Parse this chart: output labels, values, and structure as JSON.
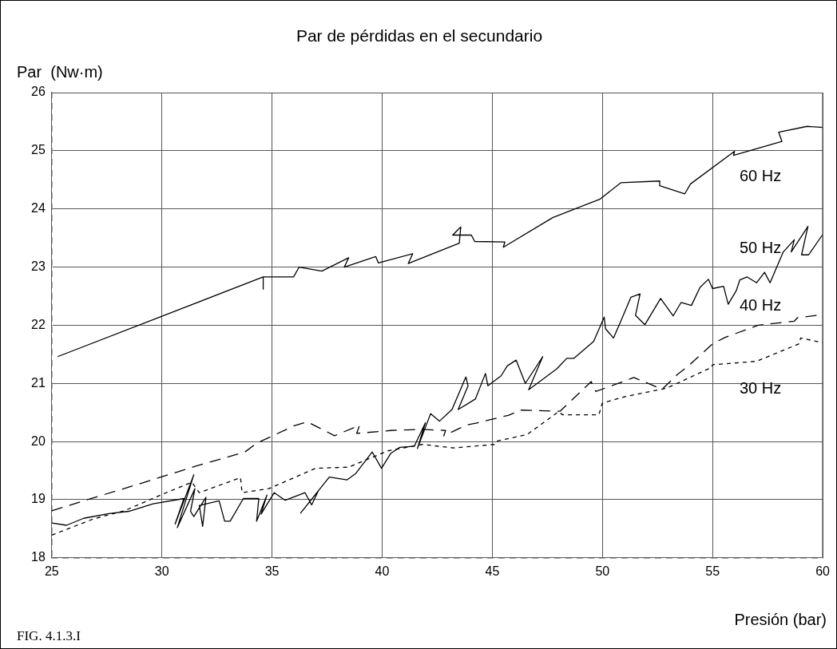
{
  "chart_data": {
    "type": "line",
    "title": "Par de pérdidas en el secundario",
    "xlabel": "Presión (bar)",
    "ylabel": "Par  (Nw·m)",
    "xlim": [
      25,
      60
    ],
    "xticks": [
      25,
      30,
      35,
      40,
      45,
      50,
      55,
      60
    ],
    "ylim": [
      18,
      26
    ],
    "yticks": [
      18,
      19,
      20,
      21,
      22,
      23,
      24,
      25,
      26
    ],
    "grid": true,
    "legend": false,
    "annotations": [
      "FIG. 4.1.3.I"
    ],
    "series": [
      {
        "name": "60 Hz",
        "color": "#000000",
        "line_style": "solid",
        "x": [
          25.27,
          34.6,
          34.6,
          34.6,
          35.98,
          36.23,
          37.26,
          38.48,
          38.28,
          39.71,
          39.83,
          41.39,
          41.18,
          43.5,
          43.57,
          43.2,
          44.05,
          44.2,
          45.57,
          45.5,
          47.74,
          49.9,
          50.83,
          52.6,
          52.6,
          53.74,
          54.0,
          56.0,
          55.95,
          58.15,
          58.0,
          59.3,
          60
        ],
        "values": [
          21.46,
          22.83,
          22.62,
          22.83,
          22.83,
          23.0,
          22.93,
          23.16,
          23.0,
          23.18,
          23.07,
          23.23,
          23.06,
          23.41,
          23.69,
          23.55,
          23.55,
          23.44,
          23.43,
          23.34,
          23.85,
          24.17,
          24.45,
          24.48,
          24.4,
          24.26,
          24.43,
          24.99,
          24.92,
          25.16,
          25.32,
          25.42,
          25.4
        ]
      },
      {
        "name": "50 Hz",
        "color": "#000000",
        "line_style": "solid",
        "x": [
          25,
          25.67,
          26.45,
          27.6,
          28.5,
          29.6,
          31.0,
          30.6,
          31.45,
          30.7,
          31.5,
          31.3,
          31.45,
          32.0,
          31.85,
          31.7,
          32.6,
          32.85,
          33.1,
          33.7,
          34.4,
          34.3,
          34.77,
          34.5,
          35.1,
          35.6,
          36.5,
          36.8,
          37.1,
          36.3,
          37.6,
          38.4,
          38.8,
          39.55,
          39.97,
          40.4,
          40.8,
          41.46,
          41.96,
          41.6,
          42.2,
          42.6,
          43.17,
          43.8,
          43.9,
          43.45,
          44.23,
          44.69,
          44.8,
          45.4,
          45.68,
          46.08,
          46.5,
          47.29,
          46.65,
          47.93,
          48.38,
          48.7,
          49.6,
          50.08,
          50.14,
          50.5,
          50.79,
          51.29,
          51.71,
          51.5,
          51.93,
          52.64,
          53.21,
          53.57,
          54.04,
          54.43,
          54.81,
          55.0,
          55.5,
          55.71,
          56.07,
          56.24,
          56.57,
          57.0,
          57.36,
          57.61,
          58.21,
          58.71,
          58.57,
          59.33,
          59.04,
          59.36,
          60
        ],
        "values": [
          18.6,
          18.56,
          18.68,
          18.76,
          18.8,
          18.93,
          19.02,
          18.58,
          19.43,
          18.52,
          19.19,
          18.8,
          18.71,
          19.04,
          18.54,
          18.9,
          18.98,
          18.63,
          18.63,
          19.02,
          19.02,
          18.63,
          19.08,
          18.75,
          19.12,
          18.99,
          19.12,
          18.91,
          19.15,
          18.77,
          19.39,
          19.34,
          19.45,
          19.82,
          19.54,
          19.8,
          19.9,
          19.92,
          20.32,
          19.88,
          20.48,
          20.35,
          20.55,
          21.11,
          20.96,
          20.55,
          20.73,
          21.17,
          20.96,
          21.13,
          21.3,
          21.4,
          21.0,
          21.46,
          20.89,
          21.25,
          21.43,
          21.43,
          21.72,
          22.14,
          21.94,
          21.78,
          22.03,
          22.48,
          22.54,
          22.17,
          22.01,
          22.46,
          22.16,
          22.39,
          22.34,
          22.65,
          22.79,
          22.63,
          22.67,
          22.36,
          22.59,
          22.78,
          22.83,
          22.73,
          22.91,
          22.73,
          23.26,
          23.47,
          23.26,
          23.7,
          23.21,
          23.21,
          23.56
        ]
      },
      {
        "name": "40 Hz",
        "color": "#000000",
        "line_style": "dashed",
        "x": [
          25,
          26.8,
          29.3,
          31.57,
          33.77,
          34.3,
          36.0,
          36.6,
          37.84,
          38.98,
          38.84,
          40.4,
          41.75,
          42.88,
          42.8,
          43.8,
          44.3,
          45.72,
          46.3,
          48.07,
          48.35,
          49.49,
          49.7,
          51.43,
          52.71,
          53.43,
          53.93,
          55.0,
          55.57,
          57.07,
          58.71,
          58.86,
          60
        ],
        "values": [
          18.81,
          19.02,
          19.31,
          19.58,
          19.82,
          19.97,
          20.27,
          20.34,
          20.1,
          20.28,
          20.14,
          20.19,
          20.21,
          20.19,
          20.1,
          20.28,
          20.32,
          20.45,
          20.54,
          20.52,
          20.62,
          21.03,
          20.86,
          21.1,
          20.9,
          21.16,
          21.31,
          21.68,
          21.79,
          22.0,
          22.07,
          22.13,
          22.18
        ]
      },
      {
        "name": "30 Hz",
        "color": "#000000",
        "line_style": "dotted",
        "x": [
          25,
          26.9,
          28.3,
          29.94,
          31.36,
          31.7,
          33.57,
          33.64,
          34.85,
          36.98,
          38.48,
          40.26,
          41.82,
          43.24,
          45.09,
          45.23,
          46.58,
          48.0,
          48.2,
          49.84,
          49.99,
          51.0,
          52.93,
          54.93,
          55.0,
          57.0,
          58.93,
          59.0,
          60
        ],
        "values": [
          18.39,
          18.67,
          18.81,
          19.08,
          19.3,
          19.12,
          19.38,
          19.12,
          19.19,
          19.54,
          19.56,
          19.84,
          19.95,
          19.89,
          19.95,
          20.01,
          20.12,
          20.51,
          20.46,
          20.46,
          20.66,
          20.77,
          20.92,
          21.27,
          21.32,
          21.38,
          21.68,
          21.78,
          21.7
        ]
      }
    ]
  }
}
